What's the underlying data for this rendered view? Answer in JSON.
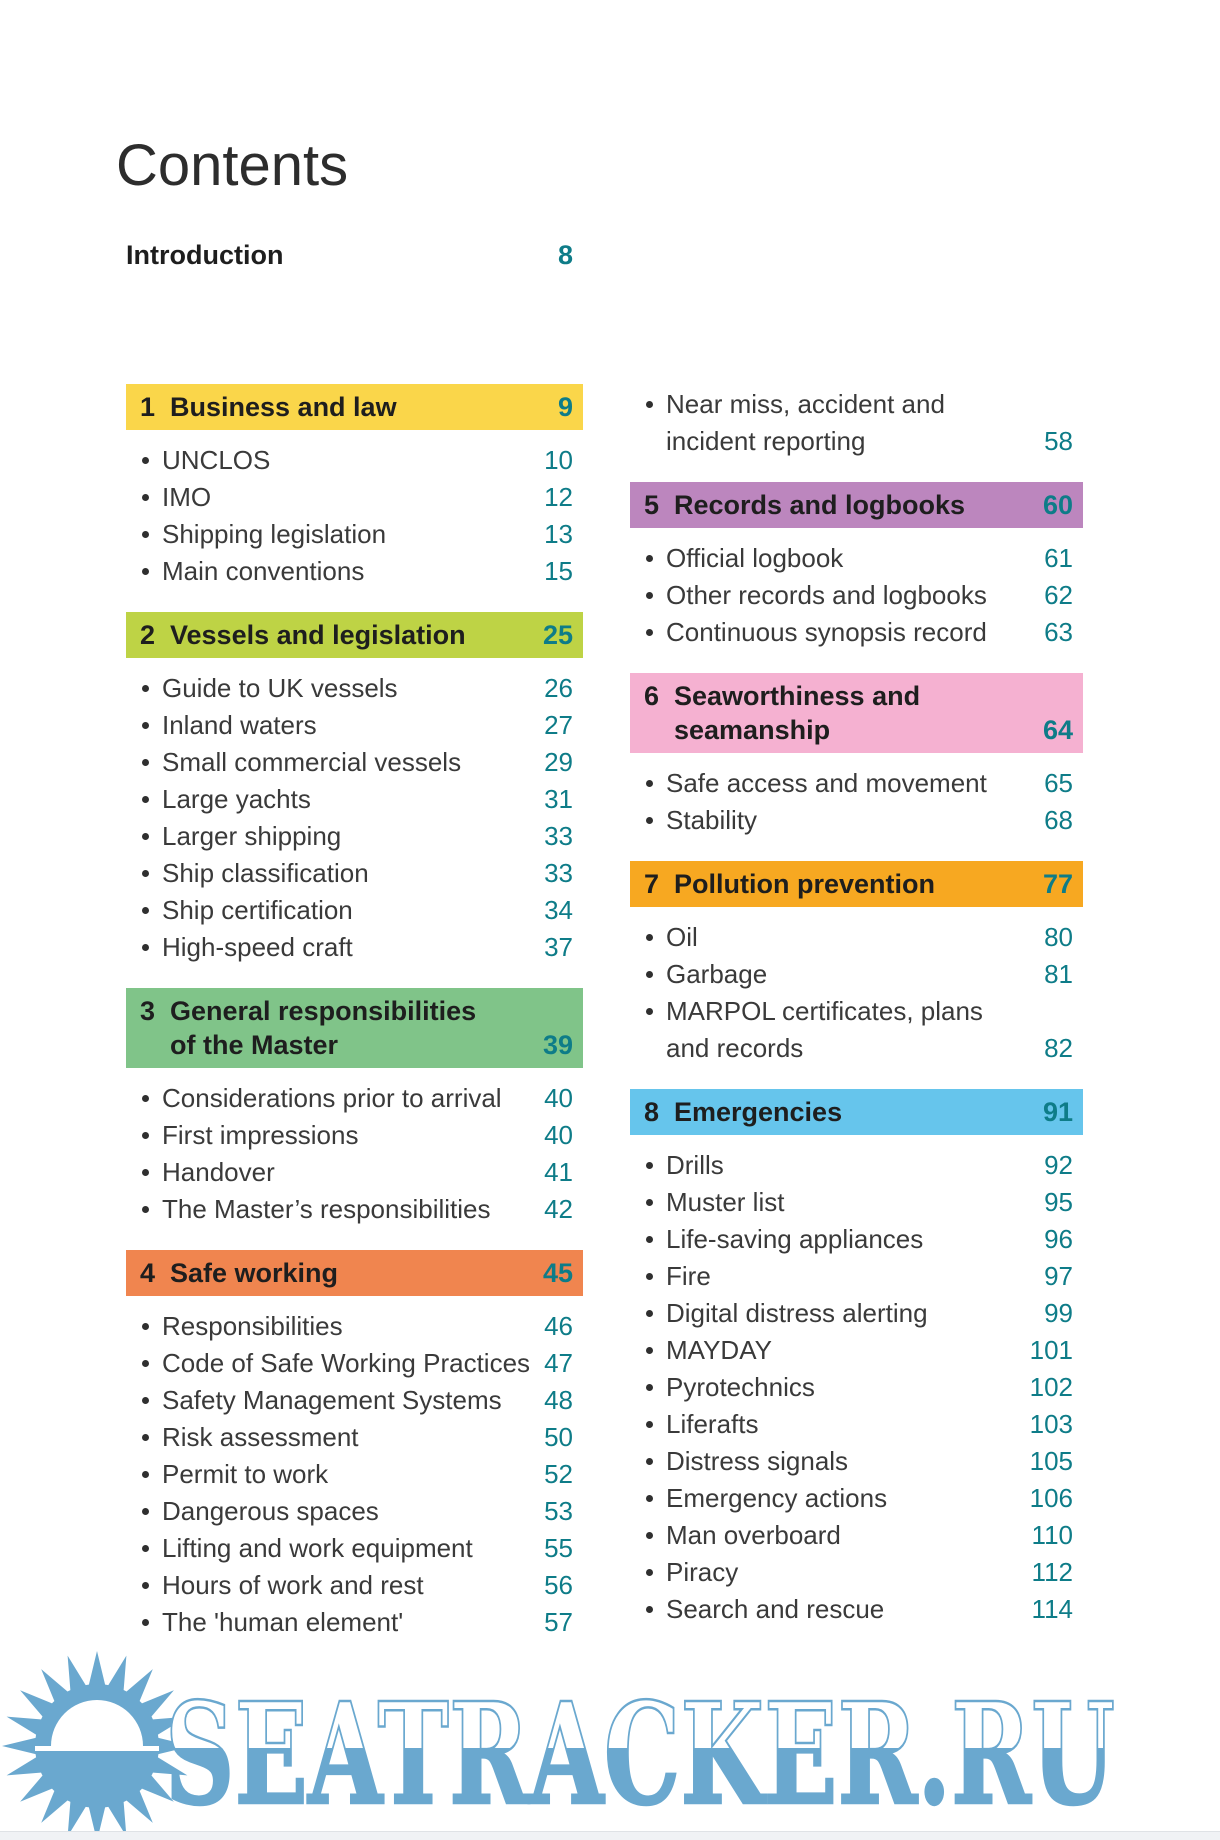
{
  "title": "Contents",
  "introduction": {
    "label": "Introduction",
    "page": "8"
  },
  "accent": {
    "page_number_teal": "#0e7c88"
  },
  "columns": {
    "left": [
      {
        "num": "1",
        "title_lines": [
          "Business and law"
        ],
        "page": "9",
        "color": "#fad64a",
        "items": [
          {
            "lines": [
              "UNCLOS"
            ],
            "page": "10"
          },
          {
            "lines": [
              "IMO"
            ],
            "page": "12"
          },
          {
            "lines": [
              "Shipping legislation"
            ],
            "page": "13"
          },
          {
            "lines": [
              "Main conventions"
            ],
            "page": "15"
          }
        ]
      },
      {
        "num": "2",
        "title_lines": [
          "Vessels and legislation"
        ],
        "page": "25",
        "color": "#bed345",
        "items": [
          {
            "lines": [
              "Guide to UK vessels"
            ],
            "page": "26"
          },
          {
            "lines": [
              "Inland waters"
            ],
            "page": "27"
          },
          {
            "lines": [
              "Small commercial vessels"
            ],
            "page": "29"
          },
          {
            "lines": [
              "Large yachts"
            ],
            "page": "31"
          },
          {
            "lines": [
              "Larger shipping"
            ],
            "page": "33"
          },
          {
            "lines": [
              "Ship classification"
            ],
            "page": "33"
          },
          {
            "lines": [
              "Ship certification"
            ],
            "page": "34"
          },
          {
            "lines": [
              "High-speed craft"
            ],
            "page": "37"
          }
        ]
      },
      {
        "num": "3",
        "title_lines": [
          "General responsibilities",
          "of the Master"
        ],
        "page": "39",
        "color": "#80c489",
        "items": [
          {
            "lines": [
              "Considerations prior to arrival"
            ],
            "page": "40"
          },
          {
            "lines": [
              "First impressions"
            ],
            "page": "40"
          },
          {
            "lines": [
              "Handover"
            ],
            "page": "41"
          },
          {
            "lines": [
              "The Master’s responsibilities"
            ],
            "page": "42"
          }
        ]
      },
      {
        "num": "4",
        "title_lines": [
          "Safe working"
        ],
        "page": "45",
        "color": "#f0854f",
        "items": [
          {
            "lines": [
              "Responsibilities"
            ],
            "page": "46"
          },
          {
            "lines": [
              "Code of Safe Working Practices"
            ],
            "page": "47"
          },
          {
            "lines": [
              "Safety Management Systems"
            ],
            "page": "48"
          },
          {
            "lines": [
              "Risk assessment"
            ],
            "page": "50"
          },
          {
            "lines": [
              "Permit to work"
            ],
            "page": "52"
          },
          {
            "lines": [
              "Dangerous spaces"
            ],
            "page": "53"
          },
          {
            "lines": [
              "Lifting and work equipment"
            ],
            "page": "55"
          },
          {
            "lines": [
              "Hours of work and rest"
            ],
            "page": "56"
          },
          {
            "lines": [
              "The 'human element'"
            ],
            "page": "57"
          }
        ]
      }
    ],
    "right": [
      {
        "num": null,
        "title_lines": [],
        "page": null,
        "color": null,
        "items": [
          {
            "lines": [
              "Near miss, accident and",
              "incident reporting"
            ],
            "page": "58"
          }
        ]
      },
      {
        "num": "5",
        "title_lines": [
          "Records and logbooks"
        ],
        "page": "60",
        "color": "#bc86be",
        "items": [
          {
            "lines": [
              "Official logbook"
            ],
            "page": "61"
          },
          {
            "lines": [
              "Other records and logbooks"
            ],
            "page": "62"
          },
          {
            "lines": [
              "Continuous synopsis record"
            ],
            "page": "63"
          }
        ]
      },
      {
        "num": "6",
        "title_lines": [
          "Seaworthiness and",
          "seamanship"
        ],
        "page": "64",
        "color": "#f5b1d1",
        "items": [
          {
            "lines": [
              "Safe access and movement"
            ],
            "page": "65"
          },
          {
            "lines": [
              "Stability"
            ],
            "page": "68"
          }
        ]
      },
      {
        "num": "7",
        "title_lines": [
          "Pollution prevention"
        ],
        "page": "77",
        "color": "#f7a821",
        "items": [
          {
            "lines": [
              "Oil"
            ],
            "page": "80"
          },
          {
            "lines": [
              "Garbage"
            ],
            "page": "81"
          },
          {
            "lines": [
              "MARPOL certificates, plans",
              "and records"
            ],
            "page": "82"
          }
        ]
      },
      {
        "num": "8",
        "title_lines": [
          "Emergencies"
        ],
        "page": "91",
        "color": "#66c5ec",
        "items": [
          {
            "lines": [
              "Drills"
            ],
            "page": "92"
          },
          {
            "lines": [
              "Muster list"
            ],
            "page": "95"
          },
          {
            "lines": [
              "Life-saving appliances"
            ],
            "page": "96"
          },
          {
            "lines": [
              "Fire"
            ],
            "page": "97"
          },
          {
            "lines": [
              "Digital distress alerting"
            ],
            "page": "99"
          },
          {
            "lines": [
              "MAYDAY"
            ],
            "page": "101"
          },
          {
            "lines": [
              "Pyrotechnics"
            ],
            "page": "102"
          },
          {
            "lines": [
              "Liferafts"
            ],
            "page": "103"
          },
          {
            "lines": [
              "Distress signals"
            ],
            "page": "105"
          },
          {
            "lines": [
              "Emergency actions"
            ],
            "page": "106"
          },
          {
            "lines": [
              "Man overboard"
            ],
            "page": "110"
          },
          {
            "lines": [
              "Piracy"
            ],
            "page": "112"
          },
          {
            "lines": [
              "Search and rescue"
            ],
            "page": "114"
          }
        ]
      }
    ]
  },
  "watermark": {
    "text": "SEATRACKER.RU",
    "color": "#6aa8cf"
  }
}
